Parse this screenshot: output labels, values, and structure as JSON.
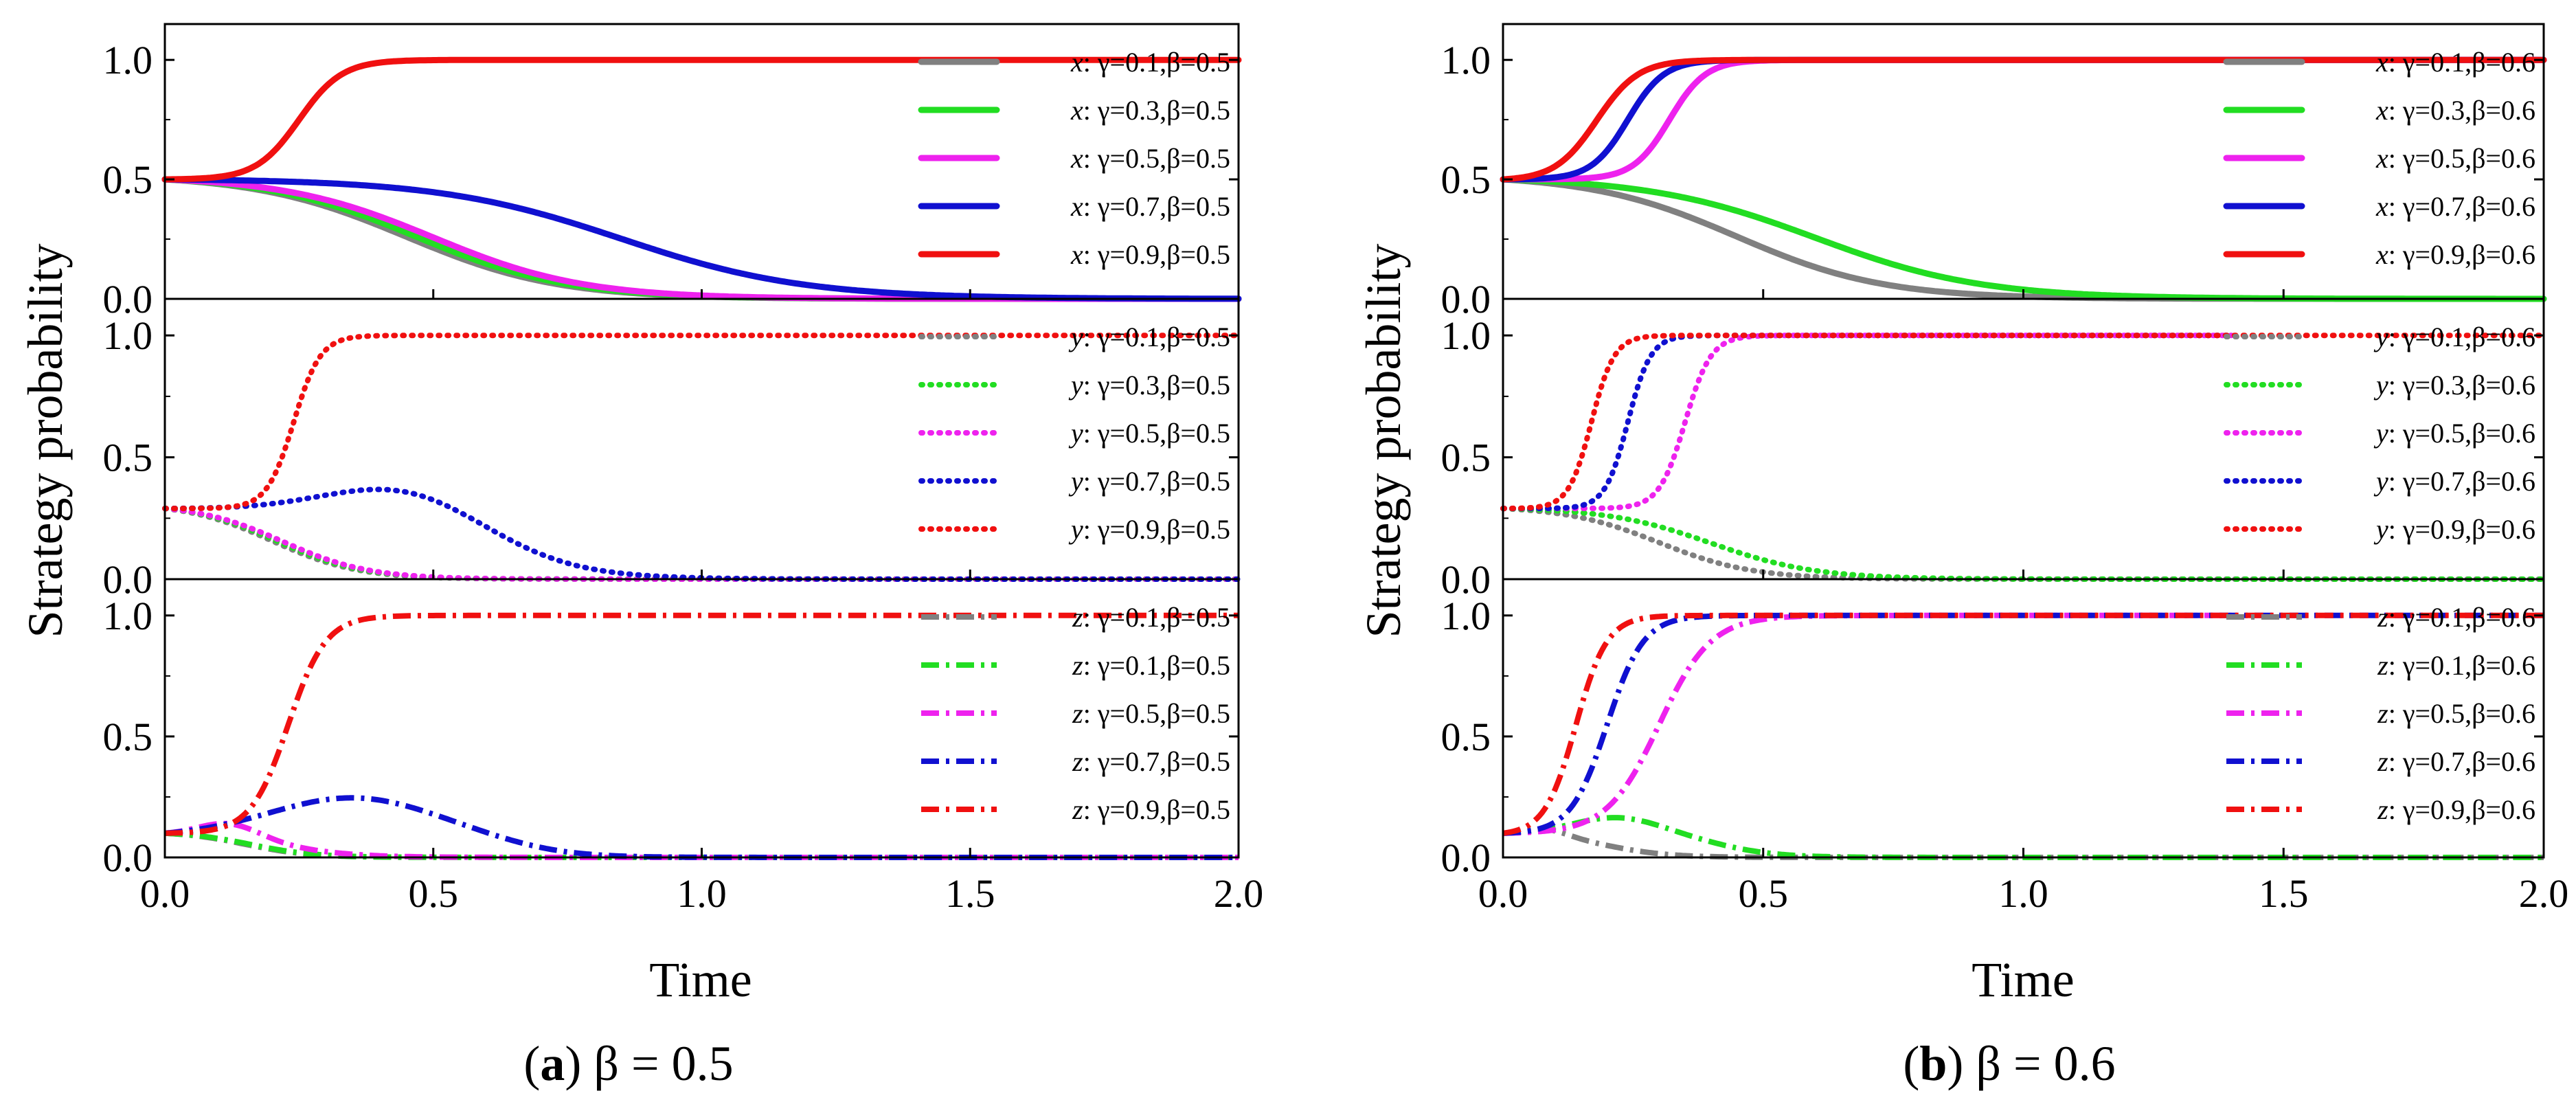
{
  "figure": {
    "ylabel": "Strategy probability",
    "xlabel": "Time",
    "x_ticks": [
      "0.0",
      "0.5",
      "1.0",
      "1.5",
      "2.0"
    ],
    "y_ticks": [
      "0.0",
      "0.5",
      "1.0"
    ],
    "colors": {
      "gray": "#808080",
      "green": "#22dd22",
      "magenta": "#ee22ee",
      "blue": "#1010d0",
      "red": "#f01010"
    }
  },
  "chart_data": [
    {
      "type": "line",
      "panel": "a",
      "caption": {
        "letter": "a",
        "rest": "β = 0.5"
      },
      "xlabel": "Time",
      "ylabel": "Strategy probability",
      "xlim": [
        0,
        2
      ],
      "ylim": [
        0,
        1.15
      ],
      "subplots": [
        {
          "variable": "x",
          "style": "solid",
          "series": [
            {
              "name": "x: γ=0.1,β=0.5",
              "label_var": "x",
              "label_rest": ": γ=0.1,β=0.5",
              "color": "#808080",
              "y0": 0.5,
              "target": 0,
              "mid": 0.45,
              "width": 0.14
            },
            {
              "name": "x: γ=0.3,β=0.5",
              "label_var": "x",
              "label_rest": ": γ=0.3,β=0.5",
              "color": "#22dd22",
              "y0": 0.5,
              "target": 0,
              "mid": 0.47,
              "width": 0.14
            },
            {
              "name": "x: γ=0.5,β=0.5",
              "label_var": "x",
              "label_rest": ": γ=0.5,β=0.5",
              "color": "#ee22ee",
              "y0": 0.5,
              "target": 0,
              "mid": 0.5,
              "width": 0.14
            },
            {
              "name": "x: γ=0.7,β=0.5",
              "label_var": "x",
              "label_rest": ": γ=0.7,β=0.5",
              "color": "#1010d0",
              "y0": 0.5,
              "target": 0,
              "mid": 0.85,
              "width": 0.17
            },
            {
              "name": "x: γ=0.9,β=0.5",
              "label_var": "x",
              "label_rest": ": γ=0.9,β=0.5",
              "color": "#f01010",
              "y0": 0.5,
              "target": 1,
              "mid": 0.25,
              "width": 0.04
            }
          ]
        },
        {
          "variable": "y",
          "style": "dotted",
          "series": [
            {
              "name": "y: γ=0.1,β=0.5",
              "label_var": "y",
              "label_rest": ": γ=0.1,β=0.5",
              "color": "#808080",
              "y0": 0.29,
              "target": 0,
              "mid": 0.2,
              "width": 0.08
            },
            {
              "name": "y: γ=0.3,β=0.5",
              "label_var": "y",
              "label_rest": ": γ=0.3,β=0.5",
              "color": "#22dd22",
              "y0": 0.29,
              "target": 0,
              "mid": 0.21,
              "width": 0.08
            },
            {
              "name": "y: γ=0.5,β=0.5",
              "label_var": "y",
              "label_rest": ": γ=0.5,β=0.5",
              "color": "#ee22ee",
              "y0": 0.29,
              "target": 0,
              "mid": 0.22,
              "width": 0.08
            },
            {
              "name": "y: γ=0.7,β=0.5",
              "label_var": "y",
              "label_rest": ": γ=0.7,β=0.5",
              "color": "#1010d0",
              "y0": 0.29,
              "target": 0,
              "mid": 0.6,
              "width": 0.1,
              "bump": {
                "amp": 0.12,
                "center": 0.45,
                "width": 0.2
              }
            },
            {
              "name": "y: γ=0.9,β=0.5",
              "label_var": "y",
              "label_rest": ": γ=0.9,β=0.5",
              "color": "#f01010",
              "y0": 0.29,
              "target": 1,
              "mid": 0.24,
              "width": 0.025
            }
          ]
        },
        {
          "variable": "z",
          "style": "dashdot",
          "series": [
            {
              "name": "z: γ=0.1,β=0.5",
              "label_var": "z",
              "label_rest": ": γ=0.1,β=0.5",
              "color": "#808080",
              "y0": 0.1,
              "target": 0,
              "mid": 0.15,
              "width": 0.06
            },
            {
              "name": "z: γ=0.1,β=0.5",
              "label_var": "z",
              "label_rest": ": γ=0.1,β=0.5",
              "color": "#22dd22",
              "y0": 0.1,
              "target": 0,
              "mid": 0.16,
              "width": 0.06
            },
            {
              "name": "z: γ=0.5,β=0.5",
              "label_var": "z",
              "label_rest": ": γ=0.5,β=0.5",
              "color": "#ee22ee",
              "y0": 0.1,
              "target": 0,
              "mid": 0.22,
              "width": 0.07,
              "bump": {
                "amp": 0.06,
                "center": 0.12,
                "width": 0.08
              }
            },
            {
              "name": "z: γ=0.7,β=0.5",
              "label_var": "z",
              "label_rest": ": γ=0.7,β=0.5",
              "color": "#1010d0",
              "y0": 0.1,
              "target": 0,
              "mid": 0.65,
              "width": 0.07,
              "bump": {
                "amp": 0.16,
                "center": 0.35,
                "width": 0.22
              }
            },
            {
              "name": "z: γ=0.9,β=0.5",
              "label_var": "z",
              "label_rest": ": γ=0.9,β=0.5",
              "color": "#f01010",
              "y0": 0.1,
              "target": 1,
              "mid": 0.23,
              "width": 0.035
            }
          ]
        }
      ]
    },
    {
      "type": "line",
      "panel": "b",
      "caption": {
        "letter": "b",
        "rest": "β = 0.6"
      },
      "xlabel": "Time",
      "ylabel": "Strategy probability",
      "xlim": [
        0,
        2
      ],
      "ylim": [
        0,
        1.15
      ],
      "subplots": [
        {
          "variable": "x",
          "style": "solid",
          "series": [
            {
              "name": "x: γ=0.1,β=0.6",
              "label_var": "x",
              "label_rest": ": γ=0.1,β=0.6",
              "color": "#808080",
              "y0": 0.5,
              "target": 0,
              "mid": 0.45,
              "width": 0.14
            },
            {
              "name": "x: γ=0.3,β=0.6",
              "label_var": "x",
              "label_rest": ": γ=0.3,β=0.6",
              "color": "#22dd22",
              "y0": 0.5,
              "target": 0,
              "mid": 0.6,
              "width": 0.16
            },
            {
              "name": "x: γ=0.5,β=0.6",
              "label_var": "x",
              "label_rest": ": γ=0.5,β=0.6",
              "color": "#ee22ee",
              "y0": 0.5,
              "target": 1,
              "mid": 0.32,
              "width": 0.035
            },
            {
              "name": "x: γ=0.7,β=0.6",
              "label_var": "x",
              "label_rest": ": γ=0.7,β=0.6",
              "color": "#1010d0",
              "y0": 0.5,
              "target": 1,
              "mid": 0.24,
              "width": 0.035
            },
            {
              "name": "x: γ=0.9,β=0.6",
              "label_var": "x",
              "label_rest": ": γ=0.9,β=0.6",
              "color": "#f01010",
              "y0": 0.5,
              "target": 1,
              "mid": 0.18,
              "width": 0.04
            }
          ]
        },
        {
          "variable": "y",
          "style": "dotted",
          "series": [
            {
              "name": "y: γ=0.1,β=0.6",
              "label_var": "y",
              "label_rest": ": γ=0.1,β=0.6",
              "color": "#808080",
              "y0": 0.29,
              "target": 0,
              "mid": 0.3,
              "width": 0.09
            },
            {
              "name": "y: γ=0.3,β=0.6",
              "label_var": "y",
              "label_rest": ": γ=0.3,β=0.6",
              "color": "#22dd22",
              "y0": 0.29,
              "target": 0,
              "mid": 0.4,
              "width": 0.1
            },
            {
              "name": "y: γ=0.5,β=0.6",
              "label_var": "y",
              "label_rest": ": γ=0.5,β=0.6",
              "color": "#ee22ee",
              "y0": 0.29,
              "target": 1,
              "mid": 0.35,
              "width": 0.025,
              "end": 1.4
            },
            {
              "name": "y: γ=0.7,β=0.6",
              "label_var": "y",
              "label_rest": ": γ=0.7,β=0.6",
              "color": "#1010d0",
              "y0": 0.29,
              "target": 1,
              "mid": 0.24,
              "width": 0.022,
              "end": 1.4
            },
            {
              "name": "y: γ=0.9,β=0.6",
              "label_var": "y",
              "label_rest": ": γ=0.9,β=0.6",
              "color": "#f01010",
              "y0": 0.29,
              "target": 1,
              "mid": 0.17,
              "width": 0.022
            }
          ]
        },
        {
          "variable": "z",
          "style": "dashdot",
          "series": [
            {
              "name": "z: γ=0.1,β=0.6",
              "label_var": "z",
              "label_rest": ": γ=0.1,β=0.6",
              "color": "#808080",
              "y0": 0.1,
              "target": 0,
              "mid": 0.2,
              "width": 0.06,
              "bump": {
                "amp": 0.03,
                "center": 0.08,
                "width": 0.06
              }
            },
            {
              "name": "z: γ=0.1,β=0.6",
              "label_var": "z",
              "label_rest": ": γ=0.1,β=0.6",
              "color": "#22dd22",
              "y0": 0.1,
              "target": 0,
              "mid": 0.42,
              "width": 0.06,
              "bump": {
                "amp": 0.07,
                "center": 0.22,
                "width": 0.12
              }
            },
            {
              "name": "z: γ=0.5,β=0.6",
              "label_var": "z",
              "label_rest": ": γ=0.5,β=0.6",
              "color": "#ee22ee",
              "y0": 0.1,
              "target": 1,
              "mid": 0.3,
              "width": 0.05,
              "end": 1.4
            },
            {
              "name": "z: γ=0.7,β=0.6",
              "label_var": "z",
              "label_rest": ": γ=0.7,β=0.6",
              "color": "#1010d0",
              "y0": 0.1,
              "target": 1,
              "mid": 0.2,
              "width": 0.035
            },
            {
              "name": "z: γ=0.9,β=0.6",
              "label_var": "z",
              "label_rest": ": γ=0.9,β=0.6",
              "color": "#f01010",
              "y0": 0.1,
              "target": 1,
              "mid": 0.14,
              "width": 0.03
            }
          ]
        }
      ]
    }
  ]
}
